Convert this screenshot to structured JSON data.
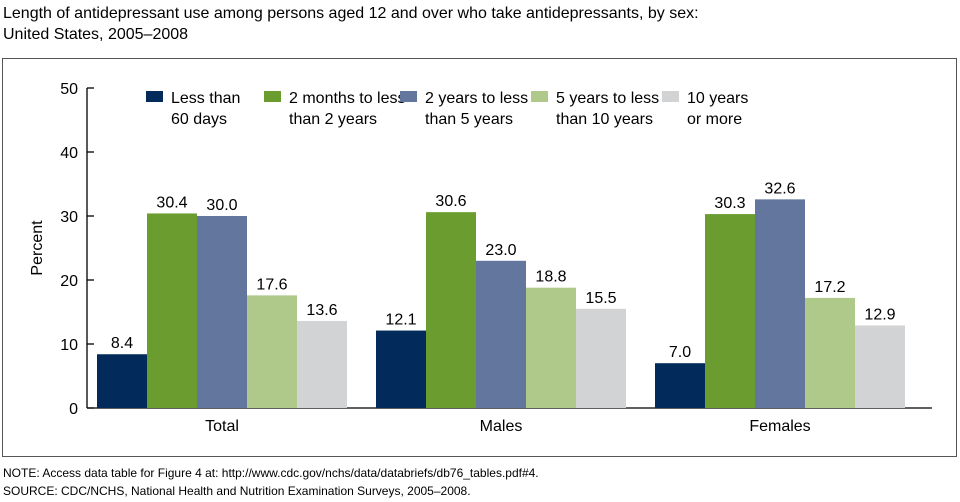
{
  "title_lines": [
    "Length of antidepressant use among persons aged 12 and over who take antidepressants, by sex:",
    "United States, 2005–2008"
  ],
  "notes": [
    "NOTE: Access data table for Figure 4 at: http://www.cdc.gov/nchs/data/databriefs/db76_tables.pdf#4.",
    "SOURCE: CDC/NCHS, National Health and Nutrition Examination Surveys, 2005–2008."
  ],
  "chart_data": {
    "type": "bar",
    "title": "Length of antidepressant use among persons aged 12 and over who take antidepressants, by sex: United States, 2005–2008",
    "xlabel": "",
    "ylabel": "Percent",
    "ylim": [
      0,
      50
    ],
    "yticks": [
      0,
      10,
      20,
      30,
      40,
      50
    ],
    "grid": false,
    "legend": "top",
    "categories": [
      "Total",
      "Males",
      "Females"
    ],
    "series": [
      {
        "name": "Less than 60 days",
        "legend_lines": [
          "Less than",
          "60 days"
        ],
        "color": "#022b5b",
        "values": [
          8.4,
          12.1,
          7.0
        ]
      },
      {
        "name": "2 months to less than 2 years",
        "legend_lines": [
          "2 months to less",
          "than 2 years"
        ],
        "color": "#6b9c30",
        "values": [
          30.4,
          30.6,
          30.3
        ]
      },
      {
        "name": "2 years to less than 5 years",
        "legend_lines": [
          "2 years to less",
          "than 5 years"
        ],
        "color": "#63779e",
        "values": [
          30.0,
          23.0,
          32.6
        ]
      },
      {
        "name": "5 years to less than 10 years",
        "legend_lines": [
          "5 years to less",
          "than 10 years"
        ],
        "color": "#afc98b",
        "values": [
          17.6,
          18.8,
          17.2
        ]
      },
      {
        "name": "10 years or more",
        "legend_lines": [
          "10 years",
          "or more"
        ],
        "color": "#d2d3d5",
        "values": [
          13.6,
          15.5,
          12.9
        ]
      }
    ]
  }
}
